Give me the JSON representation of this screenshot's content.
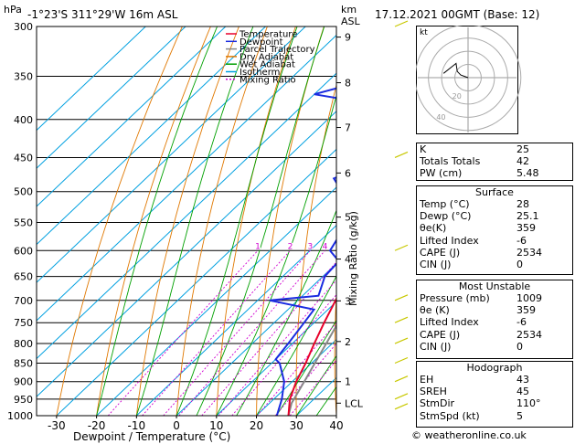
{
  "header": {
    "location": "-1°23'S  311°29'W  16m  ASL",
    "datetime": "17.12.2021  00GMT  (Base: 12)",
    "hpa_unit": "hPa",
    "km_unit": "km",
    "asl_unit": "ASL",
    "xlabel": "Dewpoint / Temperature (°C)",
    "mixing_label": "Mixing Ratio (g/kg)",
    "copyright": "© weatheronline.co.uk"
  },
  "chart_data": {
    "type": "line",
    "title": "Skew-T log-P diagram",
    "xlabel": "Dewpoint / Temperature (°C)",
    "ylabel": "hPa",
    "xlim": [
      -35,
      40
    ],
    "ylim": [
      1000,
      300
    ],
    "x_ticks": [
      -30,
      -20,
      -10,
      0,
      10,
      20,
      30,
      40
    ],
    "pressure_ticks": [
      300,
      350,
      400,
      450,
      500,
      550,
      600,
      650,
      700,
      750,
      800,
      850,
      900,
      950,
      1000
    ],
    "km_ticks": [
      {
        "label": "9",
        "p": 310
      },
      {
        "label": "8",
        "p": 357
      },
      {
        "label": "7",
        "p": 410
      },
      {
        "label": "6",
        "p": 472
      },
      {
        "label": "5",
        "p": 541
      },
      {
        "label": "4",
        "p": 616
      },
      {
        "label": "3",
        "p": 701
      },
      {
        "label": "2",
        "p": 795
      },
      {
        "label": "1",
        "p": 900
      },
      {
        "label": "LCL",
        "p": 962
      }
    ],
    "mixing_ratios": [
      "1",
      "2",
      "3",
      "4",
      "6",
      "8",
      "10",
      "15",
      "20",
      "25"
    ],
    "legend": [
      {
        "label": "Temperature",
        "color": "#e8002a"
      },
      {
        "label": "Dewpoint",
        "color": "#1a2be0"
      },
      {
        "label": "Parcel Trajectory",
        "color": "#888888"
      },
      {
        "label": "Dry Adiabat",
        "color": "#e07800"
      },
      {
        "label": "Wet Adiabat",
        "color": "#00a000"
      },
      {
        "label": "Isotherm",
        "color": "#00a0e0"
      },
      {
        "label": "Mixing Ratio",
        "color": "#d000d0"
      }
    ],
    "series": [
      {
        "name": "Temperature",
        "p": [
          1000,
          950,
          900,
          850,
          800,
          750,
          700,
          650,
          600,
          550,
          500,
          450,
          400,
          350,
          300
        ],
        "t": [
          28.0,
          24.0,
          21.0,
          18.5,
          15.5,
          12.5,
          9.5,
          6.5,
          4.0,
          0.0,
          -4.5,
          -10.0,
          -17.0,
          -25.5,
          -34.5
        ]
      },
      {
        "name": "Dewpoint",
        "p": [
          1000,
          950,
          900,
          850,
          840,
          800,
          750,
          720,
          700,
          690,
          650,
          620,
          600,
          550,
          500,
          480,
          450,
          400,
          380,
          370,
          350,
          320,
          300
        ],
        "t": [
          25.1,
          22.0,
          18.0,
          12.0,
          10.0,
          9.0,
          7.5,
          6.5,
          -7.0,
          4.0,
          0.5,
          0.0,
          -5.0,
          -8.0,
          -17.5,
          -23.0,
          -15.5,
          -32.0,
          -35.0,
          -50.0,
          -38.0,
          -37.0,
          -44.0
        ]
      },
      {
        "name": "Parcel Trajectory",
        "p": [
          1000,
          962,
          900,
          850,
          800,
          750,
          700,
          650,
          600,
          550,
          500,
          450,
          400,
          350,
          300
        ],
        "t": [
          28.0,
          25.5,
          23.0,
          20.8,
          18.5,
          16.0,
          13.5,
          10.8,
          7.8,
          4.5,
          0.8,
          -3.5,
          -8.5,
          -14.5,
          -21.5
        ]
      }
    ]
  },
  "hodograph": {
    "label": "kt",
    "rings": [
      "20",
      "40"
    ],
    "points_dir_speed": [
      [
        110,
        5
      ],
      [
        120,
        8
      ],
      [
        140,
        12
      ],
      [
        100,
        16
      ]
    ]
  },
  "indices": {
    "rows": [
      {
        "key": "K",
        "value": "25"
      },
      {
        "key": "Totals Totals",
        "value": "42"
      },
      {
        "key": "PW (cm)",
        "value": "5.48"
      }
    ]
  },
  "surface": {
    "title": "Surface",
    "rows": [
      {
        "key": "Temp (°C)",
        "value": "28"
      },
      {
        "key": "Dewp (°C)",
        "value": "25.1"
      },
      {
        "key": "θe(K)",
        "value": "359"
      },
      {
        "key": "Lifted Index",
        "value": "-6"
      },
      {
        "key": "CAPE (J)",
        "value": "2534"
      },
      {
        "key": "CIN (J)",
        "value": "0"
      }
    ]
  },
  "unstable": {
    "title": "Most Unstable",
    "rows": [
      {
        "key": "Pressure (mb)",
        "value": "1009"
      },
      {
        "key": "θe (K)",
        "value": "359"
      },
      {
        "key": "Lifted Index",
        "value": "-6"
      },
      {
        "key": "CAPE (J)",
        "value": "2534"
      },
      {
        "key": "CIN (J)",
        "value": "0"
      }
    ]
  },
  "hodo_table": {
    "title": "Hodograph",
    "rows": [
      {
        "key": "EH",
        "value": "43"
      },
      {
        "key": "SREH",
        "value": "45"
      },
      {
        "key": "StmDir",
        "value": "110°"
      },
      {
        "key": "StmSpd (kt)",
        "value": "5"
      }
    ]
  },
  "colors": {
    "temperature": "#e8002a",
    "dewpoint": "#1a2be0",
    "parcel": "#888888",
    "dry_adiabat": "#e07800",
    "wet_adiabat": "#00a000",
    "isotherm": "#00a0e0",
    "mixing_ratio": "#d000d0",
    "wind_barb": "#c8c800"
  }
}
